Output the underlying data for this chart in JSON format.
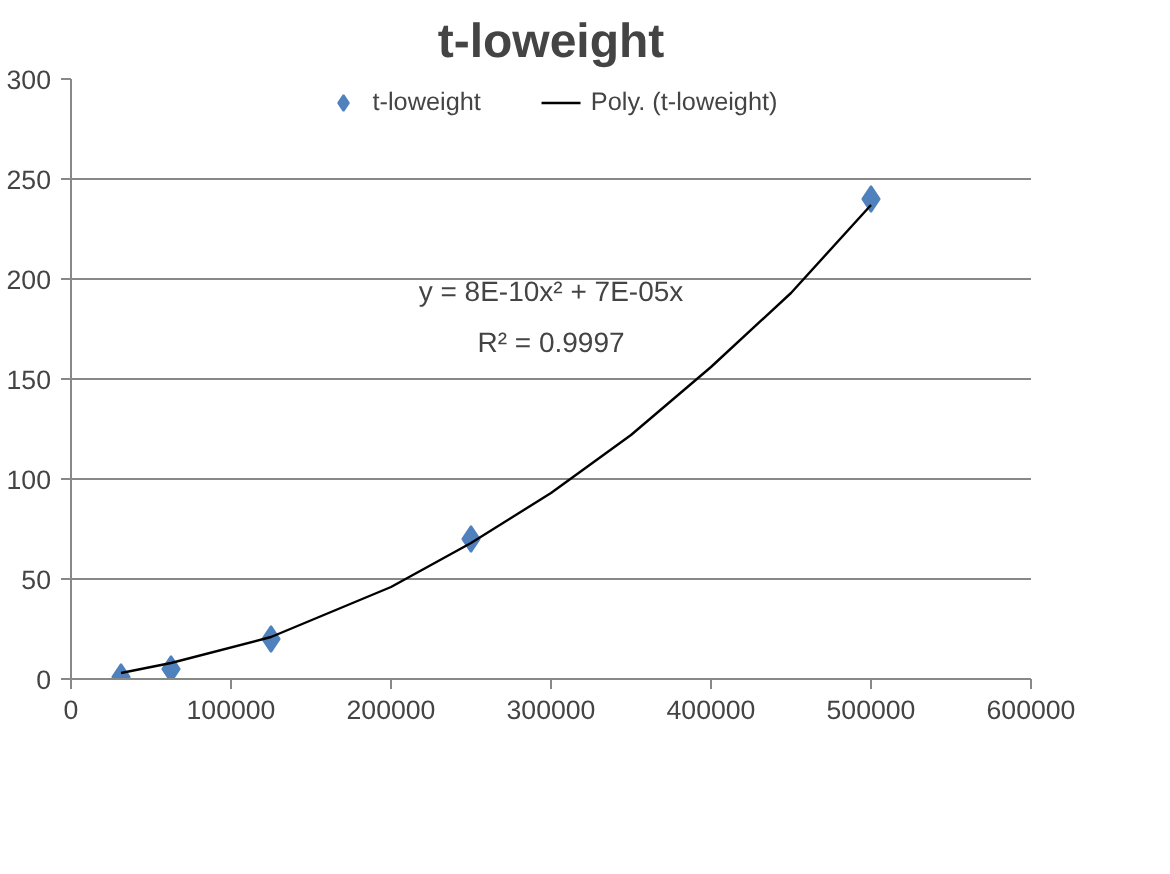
{
  "chart_data": {
    "type": "scatter",
    "title": "t-loweight",
    "series": [
      {
        "name": "t-loweight",
        "color": "#4f81bd",
        "marker": "diamond",
        "x": [
          31250,
          62500,
          125000,
          250000,
          500000
        ],
        "values": [
          1,
          5,
          20,
          70,
          240
        ]
      },
      {
        "name": "Poly. (t-loweight)",
        "type": "line",
        "color": "#000000",
        "x": [
          31250,
          62500,
          125000,
          200000,
          250000,
          300000,
          350000,
          400000,
          450000,
          500000
        ],
        "values": [
          3,
          8,
          21,
          46,
          68,
          93,
          122,
          156,
          193,
          237
        ]
      }
    ],
    "annotations": [
      "y = 8E-10x² + 7E-05x",
      "R² = 0.9997"
    ],
    "xlim": [
      0,
      600000
    ],
    "xticks": [
      0,
      100000,
      200000,
      300000,
      400000,
      500000,
      600000
    ],
    "ylim": [
      0,
      300
    ],
    "yticks": [
      0,
      50,
      100,
      150,
      200,
      250,
      300
    ],
    "grid": "y",
    "legend": "top"
  }
}
